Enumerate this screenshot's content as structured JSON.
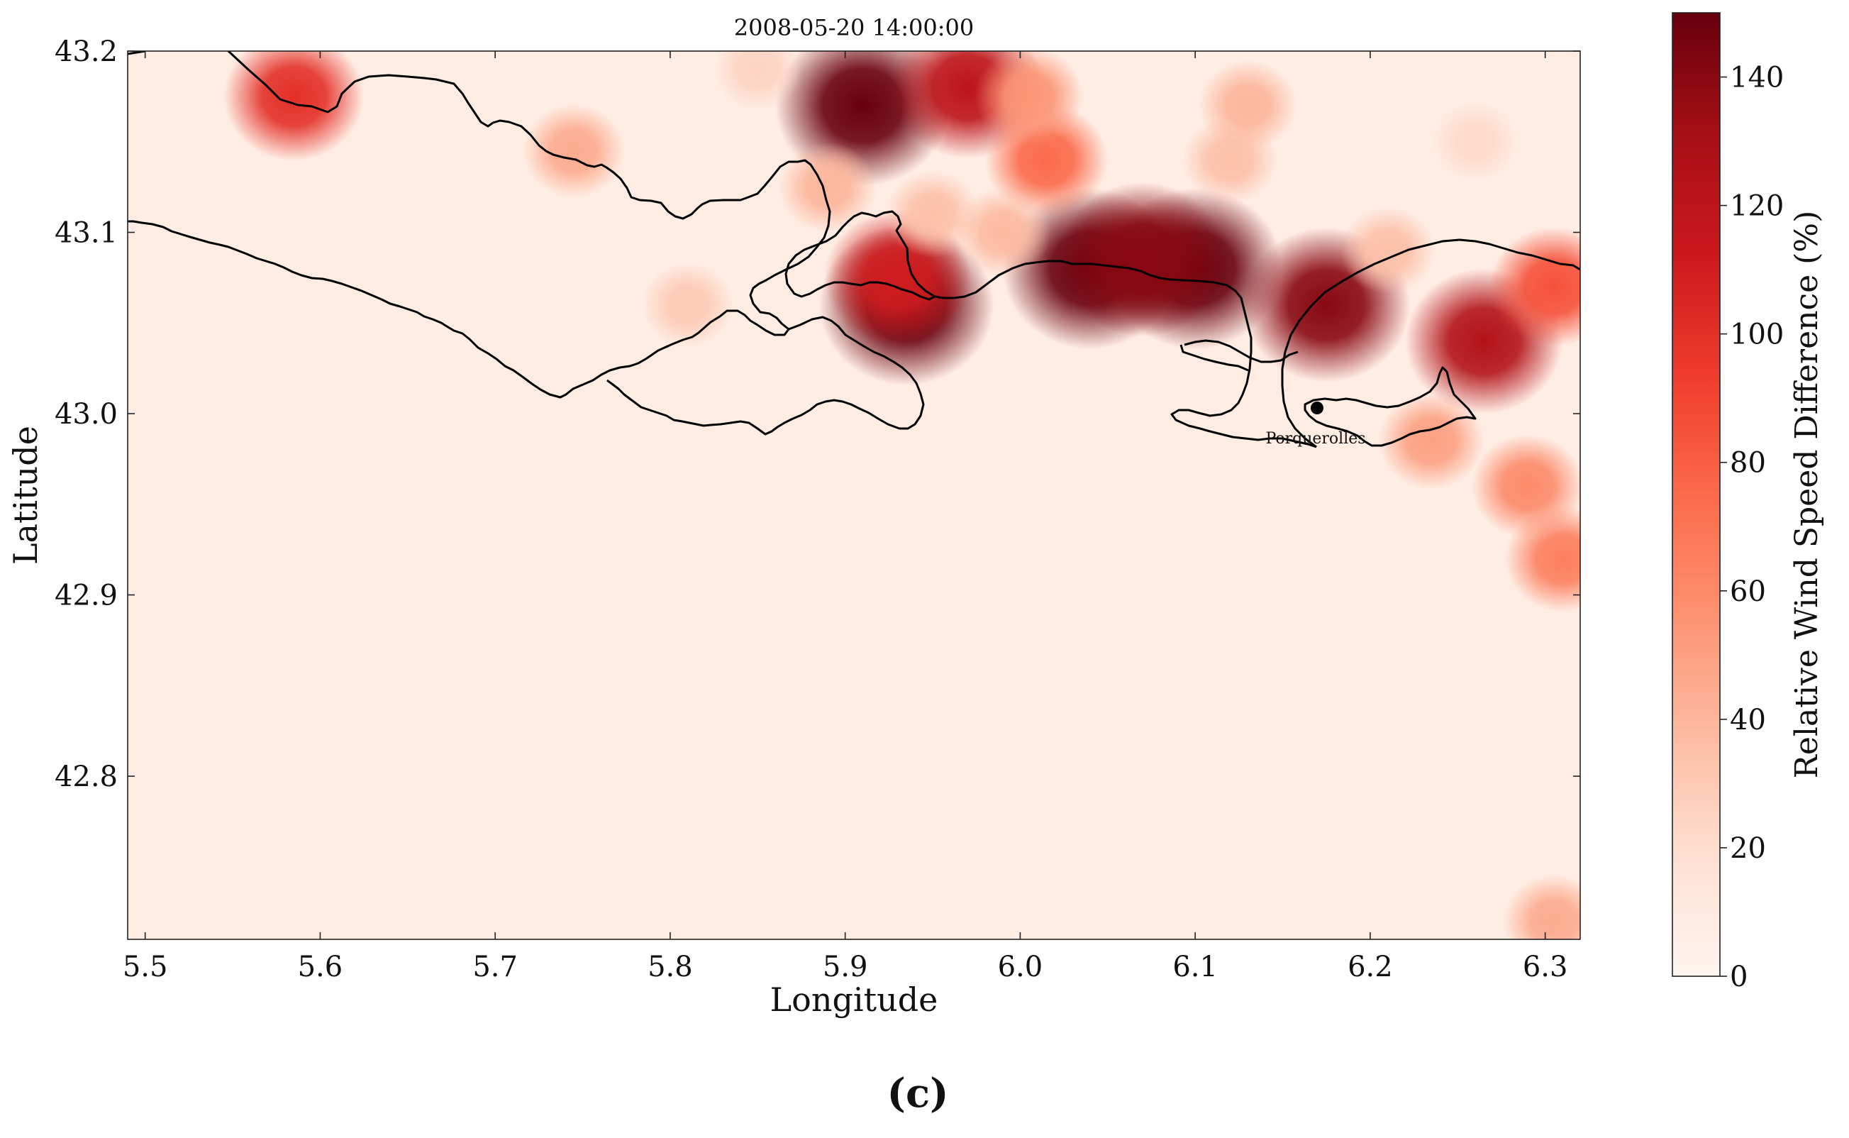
{
  "title": "2008-05-20 14:00:00",
  "panel_label": "(c)",
  "chart_data": {
    "type": "heatmap",
    "title": "2008-05-20 14:00:00",
    "xlabel": "Longitude",
    "ylabel": "Latitude",
    "xlim": [
      5.49,
      6.32
    ],
    "ylim": [
      42.71,
      43.2
    ],
    "x_ticks": [
      5.5,
      5.6,
      5.7,
      5.8,
      5.9,
      6.0,
      6.1,
      6.2,
      6.3
    ],
    "x_tick_labels": [
      "5.5",
      "5.6",
      "5.7",
      "5.8",
      "5.9",
      "6.0",
      "6.1",
      "6.2",
      "6.3"
    ],
    "y_ticks": [
      42.8,
      42.9,
      43.0,
      43.1,
      43.2
    ],
    "y_tick_labels": [
      "42.8",
      "42.9",
      "43.0",
      "43.1",
      "43.2"
    ],
    "grid": false,
    "colorbar": {
      "label": "Relative Wind Speed Difference (%)",
      "min": 0,
      "max": 150,
      "ticks": [
        0,
        20,
        40,
        60,
        80,
        100,
        120,
        140
      ],
      "tick_labels": [
        "0",
        "20",
        "40",
        "60",
        "80",
        "100",
        "120",
        "140"
      ],
      "colormap": "Reds",
      "colors": [
        "#fff5f0",
        "#fee0d2",
        "#fcbba1",
        "#fc9272",
        "#fb6a4a",
        "#ef3b2c",
        "#cb181d",
        "#a50f15",
        "#67000d"
      ]
    },
    "baseline_value": 8,
    "hotspots": [
      {
        "lon": 5.91,
        "lat": 43.17,
        "value": 150
      },
      {
        "lon": 5.97,
        "lat": 43.18,
        "value": 120
      },
      {
        "lon": 5.935,
        "lat": 43.06,
        "value": 150
      },
      {
        "lon": 5.93,
        "lat": 43.075,
        "value": 110
      },
      {
        "lon": 6.04,
        "lat": 43.08,
        "value": 150
      },
      {
        "lon": 6.1,
        "lat": 43.08,
        "value": 150
      },
      {
        "lon": 6.07,
        "lat": 43.085,
        "value": 140
      },
      {
        "lon": 6.175,
        "lat": 43.06,
        "value": 140
      },
      {
        "lon": 6.265,
        "lat": 43.04,
        "value": 125
      },
      {
        "lon": 6.305,
        "lat": 43.07,
        "value": 85
      },
      {
        "lon": 5.585,
        "lat": 43.175,
        "value": 100
      },
      {
        "lon": 6.015,
        "lat": 43.14,
        "value": 75
      },
      {
        "lon": 6.005,
        "lat": 43.175,
        "value": 55
      },
      {
        "lon": 5.745,
        "lat": 43.145,
        "value": 45
      },
      {
        "lon": 5.89,
        "lat": 43.125,
        "value": 40
      },
      {
        "lon": 5.95,
        "lat": 43.11,
        "value": 35
      },
      {
        "lon": 5.99,
        "lat": 43.1,
        "value": 38
      },
      {
        "lon": 5.81,
        "lat": 43.06,
        "value": 30
      },
      {
        "lon": 6.12,
        "lat": 43.14,
        "value": 35
      },
      {
        "lon": 6.13,
        "lat": 43.17,
        "value": 40
      },
      {
        "lon": 6.21,
        "lat": 43.09,
        "value": 35
      },
      {
        "lon": 6.235,
        "lat": 42.985,
        "value": 50
      },
      {
        "lon": 6.29,
        "lat": 42.96,
        "value": 60
      },
      {
        "lon": 6.31,
        "lat": 42.92,
        "value": 65
      },
      {
        "lon": 6.305,
        "lat": 42.72,
        "value": 45
      },
      {
        "lon": 5.85,
        "lat": 43.19,
        "value": 25
      },
      {
        "lon": 6.26,
        "lat": 43.15,
        "value": 22
      }
    ],
    "annotations": [
      {
        "text": "Porquerolles",
        "lon": 6.168,
        "lat": 43.003,
        "marker": "dot"
      }
    ]
  }
}
